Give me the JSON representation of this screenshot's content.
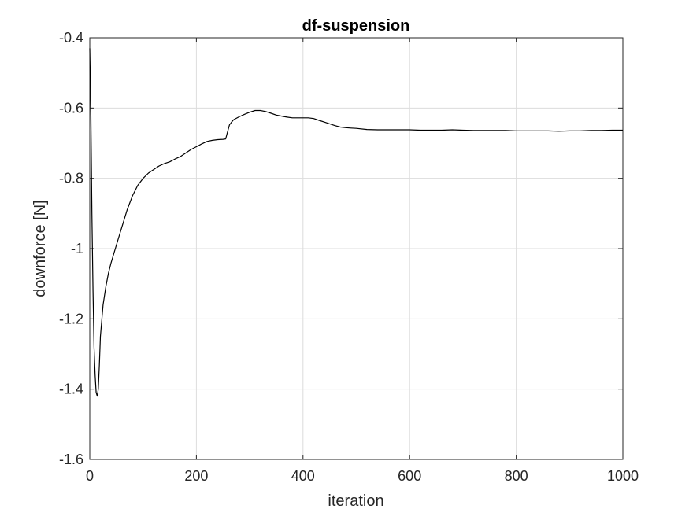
{
  "chart_data": {
    "type": "line",
    "title": "df-suspension",
    "xlabel": "iteration",
    "ylabel": "downforce [N]",
    "xlim": [
      0,
      1000
    ],
    "ylim": [
      -1.6,
      -0.4
    ],
    "xticks": [
      0,
      200,
      400,
      600,
      800,
      1000
    ],
    "yticks": [
      -1.6,
      -1.4,
      -1.2,
      -1,
      -0.8,
      -0.6,
      -0.4
    ],
    "xtick_labels": [
      "0",
      "200",
      "400",
      "600",
      "800",
      "1000"
    ],
    "ytick_labels": [
      "-1.6",
      "-1.4",
      "-1.2",
      "-1",
      "-0.8",
      "-0.6",
      "-0.4"
    ],
    "grid": true,
    "line_color": "#000000",
    "grid_color": "#dcdcdc",
    "series": [
      {
        "x": [
          0,
          2,
          4,
          6,
          8,
          10,
          12,
          14,
          16,
          18,
          20,
          25,
          30,
          35,
          40,
          50,
          60,
          70,
          80,
          90,
          100,
          110,
          120,
          130,
          140,
          150,
          160,
          170,
          180,
          190,
          200,
          210,
          220,
          230,
          240,
          250,
          255,
          258,
          262,
          266,
          270,
          280,
          290,
          300,
          310,
          320,
          330,
          340,
          350,
          360,
          370,
          380,
          390,
          400,
          410,
          420,
          430,
          440,
          450,
          460,
          470,
          480,
          490,
          500,
          520,
          540,
          560,
          580,
          600,
          620,
          640,
          660,
          680,
          700,
          720,
          740,
          760,
          780,
          800,
          820,
          840,
          860,
          880,
          900,
          920,
          940,
          960,
          980,
          1000
        ],
        "y": [
          -0.43,
          -0.62,
          -0.9,
          -1.12,
          -1.28,
          -1.36,
          -1.41,
          -1.42,
          -1.4,
          -1.33,
          -1.25,
          -1.16,
          -1.11,
          -1.07,
          -1.04,
          -0.99,
          -0.94,
          -0.89,
          -0.85,
          -0.82,
          -0.8,
          -0.785,
          -0.775,
          -0.765,
          -0.758,
          -0.753,
          -0.745,
          -0.738,
          -0.728,
          -0.718,
          -0.71,
          -0.702,
          -0.695,
          -0.692,
          -0.69,
          -0.689,
          -0.688,
          -0.67,
          -0.648,
          -0.64,
          -0.633,
          -0.625,
          -0.618,
          -0.612,
          -0.607,
          -0.607,
          -0.61,
          -0.615,
          -0.62,
          -0.623,
          -0.626,
          -0.628,
          -0.628,
          -0.628,
          -0.628,
          -0.63,
          -0.635,
          -0.64,
          -0.645,
          -0.65,
          -0.654,
          -0.656,
          -0.657,
          -0.658,
          -0.661,
          -0.662,
          -0.662,
          -0.662,
          -0.662,
          -0.663,
          -0.663,
          -0.663,
          -0.662,
          -0.663,
          -0.664,
          -0.664,
          -0.664,
          -0.664,
          -0.665,
          -0.665,
          -0.665,
          -0.665,
          -0.666,
          -0.665,
          -0.665,
          -0.664,
          -0.664,
          -0.663,
          -0.663
        ]
      }
    ]
  }
}
